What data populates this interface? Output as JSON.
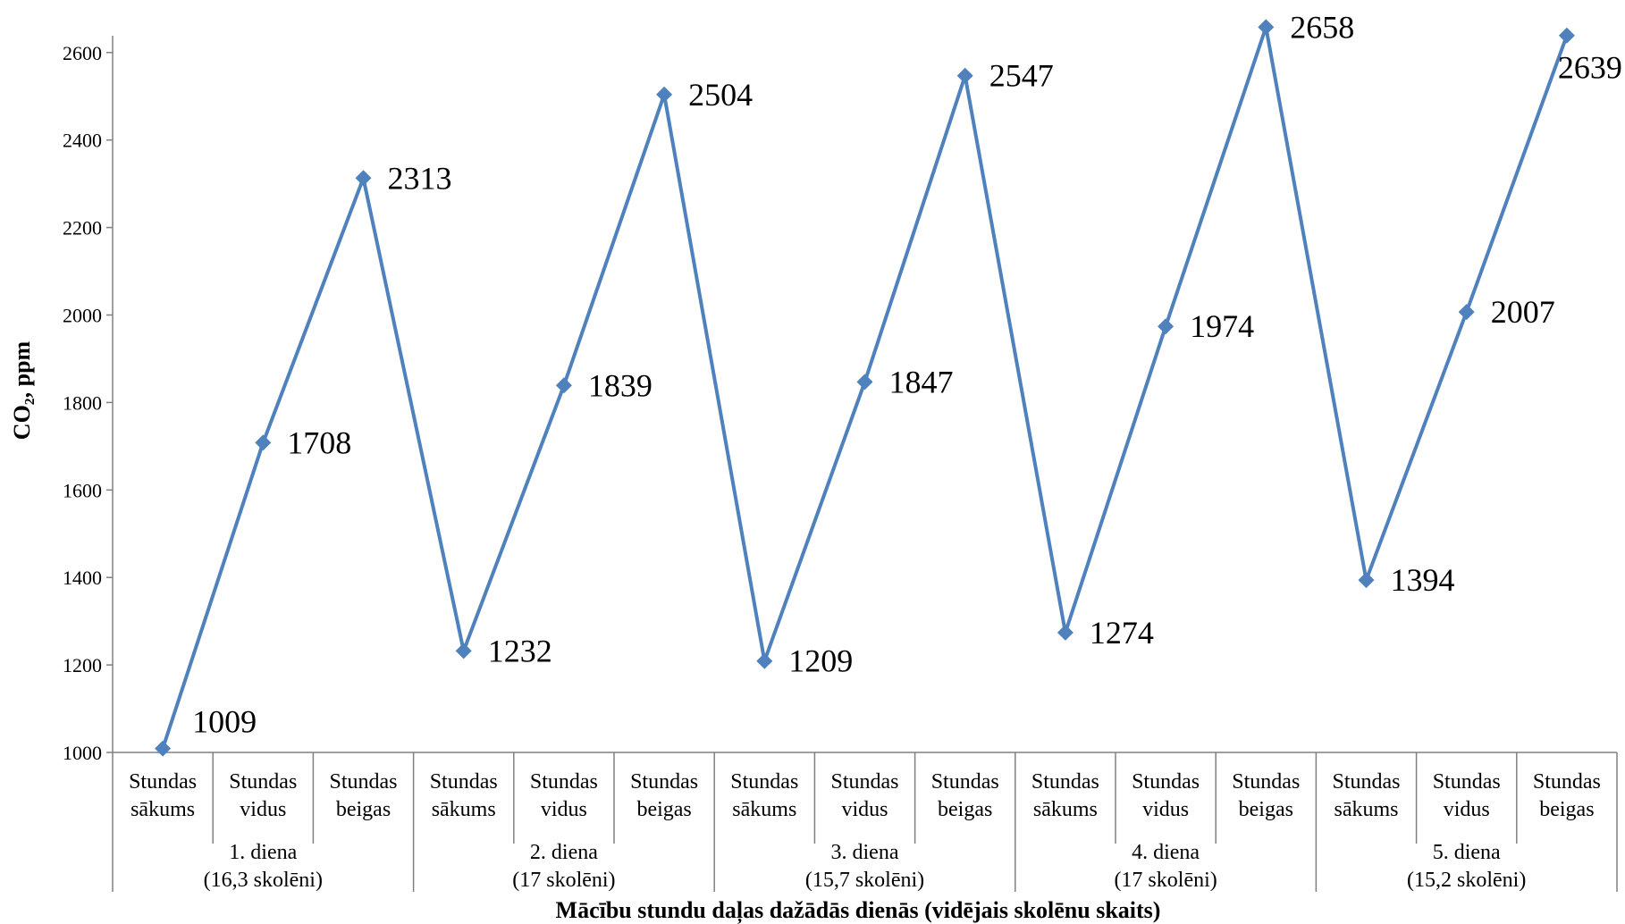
{
  "chart_data": {
    "type": "line",
    "title": "",
    "ylabel": "CO₂, ppm",
    "xlabel": "Mācību stundu daļas dažādās dienās (vidējais skolēnu skaits)",
    "ylim": [
      1000,
      2700
    ],
    "yticks": [
      1000,
      1200,
      1400,
      1600,
      1800,
      2000,
      2200,
      2400,
      2600
    ],
    "grid": false,
    "legend": "none",
    "series_color": "#4F81BD",
    "categories": [
      [
        "Stundas",
        "sākums"
      ],
      [
        "Stundas",
        "vidus"
      ],
      [
        "Stundas",
        "beigas"
      ],
      [
        "Stundas",
        "sākums"
      ],
      [
        "Stundas",
        "vidus"
      ],
      [
        "Stundas",
        "beigas"
      ],
      [
        "Stundas",
        "sākums"
      ],
      [
        "Stundas",
        "vidus"
      ],
      [
        "Stundas",
        "beigas"
      ],
      [
        "Stundas",
        "sākums"
      ],
      [
        "Stundas",
        "vidus"
      ],
      [
        "Stundas",
        "beigas"
      ],
      [
        "Stundas",
        "sākums"
      ],
      [
        "Stundas",
        "vidus"
      ],
      [
        "Stundas",
        "beigas"
      ]
    ],
    "groups": [
      [
        "1. diena",
        "(16,3 skolēni)"
      ],
      [
        "2. diena",
        "(17 skolēni)"
      ],
      [
        "3. diena",
        "(15,7 skolēni)"
      ],
      [
        "4. diena",
        "(17 skolēni)"
      ],
      [
        "5. diena",
        "(15,2 skolēni)"
      ]
    ],
    "series": [
      {
        "values": [
          1009,
          1708,
          2313,
          1232,
          1839,
          2504,
          1209,
          1847,
          2547,
          1274,
          1974,
          2658,
          1394,
          2007,
          2639
        ]
      }
    ]
  }
}
